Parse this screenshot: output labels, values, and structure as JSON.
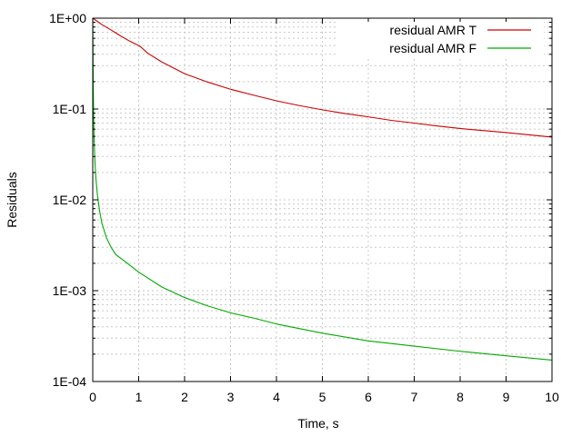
{
  "chart_data": {
    "type": "line",
    "title": "",
    "xlabel": "Time, s",
    "ylabel": "Residuals",
    "xlim": [
      0,
      10
    ],
    "ylim": [
      0.0001,
      1
    ],
    "yscale": "log",
    "grid": true,
    "legend_position": "top-right",
    "x_ticks": [
      0,
      1,
      2,
      3,
      4,
      5,
      6,
      7,
      8,
      9,
      10
    ],
    "x_tick_labels": [
      "0",
      "1",
      "2",
      "3",
      "4",
      "5",
      "6",
      "7",
      "8",
      "9",
      "10"
    ],
    "y_ticks": [
      1,
      0.1,
      0.01,
      0.001,
      0.0001
    ],
    "y_tick_labels": [
      "1E+00",
      "1E-01",
      "1E-02",
      "1E-03",
      "1E-04"
    ],
    "series": [
      {
        "name": "residual AMR T",
        "color": "#cc0000",
        "x": [
          0.0,
          0.2,
          0.4,
          0.6,
          0.8,
          1.0,
          1.05,
          1.2,
          1.5,
          2.0,
          2.5,
          3.0,
          3.5,
          4.0,
          4.5,
          5.0,
          5.5,
          6.0,
          6.5,
          7.0,
          7.5,
          8.0,
          8.5,
          9.0,
          9.5,
          10.0
        ],
        "y": [
          1.0,
          0.85,
          0.74,
          0.64,
          0.56,
          0.5,
          0.48,
          0.41,
          0.33,
          0.245,
          0.198,
          0.165,
          0.142,
          0.123,
          0.109,
          0.098,
          0.089,
          0.082,
          0.075,
          0.07,
          0.065,
          0.061,
          0.058,
          0.055,
          0.052,
          0.049
        ]
      },
      {
        "name": "residual AMR F",
        "color": "#00aa00",
        "x": [
          0.0,
          0.005,
          0.01,
          0.02,
          0.03,
          0.05,
          0.07,
          0.1,
          0.15,
          0.2,
          0.3,
          0.4,
          0.5,
          0.7,
          1.0,
          1.5,
          2.0,
          2.5,
          3.0,
          3.5,
          4.0,
          5.0,
          6.0,
          7.0,
          8.0,
          9.0,
          10.0
        ],
        "y": [
          1.0,
          0.5,
          0.2,
          0.08,
          0.045,
          0.025,
          0.017,
          0.0115,
          0.0075,
          0.0055,
          0.0038,
          0.003,
          0.0025,
          0.0021,
          0.0016,
          0.0011,
          0.00084,
          0.00068,
          0.00057,
          0.0005,
          0.00043,
          0.00034,
          0.00028,
          0.000245,
          0.000215,
          0.000192,
          0.000172
        ]
      }
    ]
  }
}
